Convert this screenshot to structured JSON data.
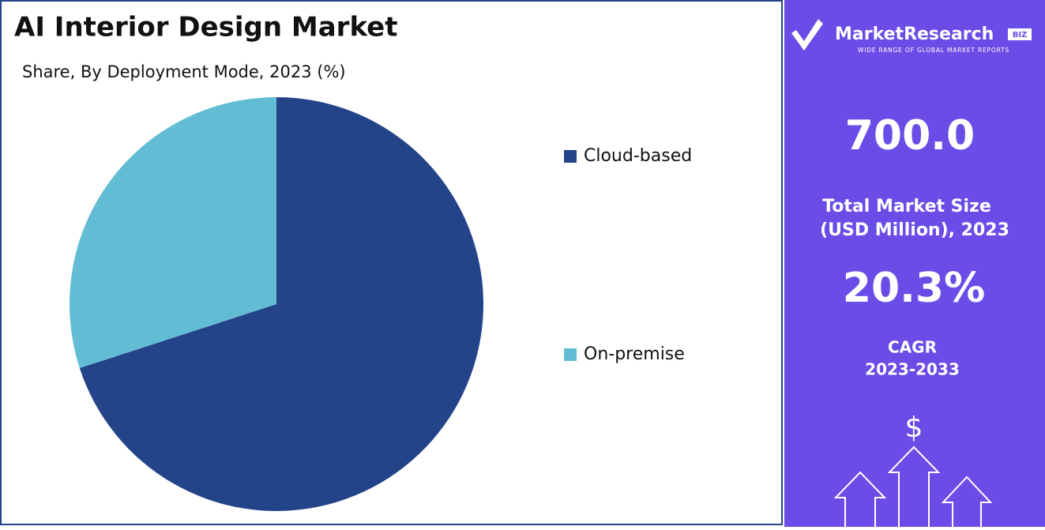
{
  "chart_data": {
    "type": "pie",
    "title": "AI Interior Design Market",
    "subtitle": "Share, By Deployment Mode, 2023 (%)",
    "categories": [
      "Cloud-based",
      "On-premise"
    ],
    "values": [
      70,
      30
    ],
    "colors": [
      "#24448a",
      "#62bdd4"
    ],
    "legend": "right"
  },
  "side_panel": {
    "brand": "MarketResearch",
    "brand_tag": "BIZ",
    "brand_slogan": "WIDE RANGE OF GLOBAL MARKET REPORTS",
    "market_size": "700.0",
    "market_size_label_1": "Total Market Size",
    "market_size_label_2": "(USD Million), 2023",
    "cagr": "20.3%",
    "cagr_label_1": "CAGR",
    "cagr_label_2": "2023-2033",
    "icon_symbol": "$"
  }
}
